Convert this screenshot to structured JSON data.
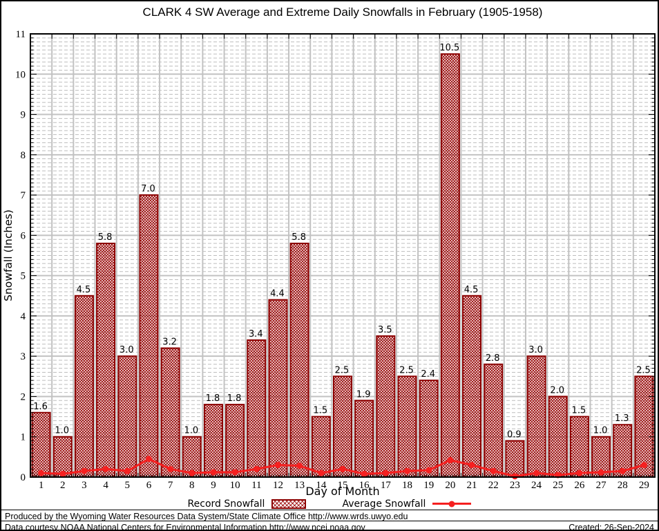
{
  "chart_data": {
    "type": "bar",
    "title": "CLARK 4 SW Average and Extreme Daily Snowfalls in February (1905-1958)",
    "xlabel": "Day of Month",
    "ylabel": "Snowfall (Inches)",
    "ylim": [
      0,
      11
    ],
    "y_major_step": 1,
    "y_minor_step": 0.1,
    "grid": {
      "major": "solid",
      "minor": "dashed"
    },
    "legend_position": "bottom",
    "bar_value_labels_shown": true,
    "categories": [
      1,
      2,
      3,
      4,
      5,
      6,
      7,
      8,
      9,
      10,
      11,
      12,
      13,
      14,
      15,
      16,
      17,
      18,
      19,
      20,
      21,
      22,
      23,
      24,
      25,
      26,
      27,
      28,
      29
    ],
    "series": [
      {
        "name": "Record Snowfall",
        "type": "bar",
        "values": [
          1.6,
          1.0,
          4.5,
          5.8,
          3.0,
          7.0,
          3.2,
          1.0,
          1.8,
          1.8,
          3.4,
          4.4,
          5.8,
          1.5,
          2.5,
          1.9,
          3.5,
          2.5,
          2.4,
          10.5,
          4.5,
          2.8,
          0.9,
          3.0,
          2.0,
          1.5,
          1.0,
          1.3,
          2.5
        ]
      },
      {
        "name": "Average Snowfall",
        "type": "line",
        "values": [
          0.1,
          0.08,
          0.15,
          0.2,
          0.15,
          0.45,
          0.2,
          0.1,
          0.12,
          0.12,
          0.2,
          0.3,
          0.28,
          0.1,
          0.2,
          0.08,
          0.1,
          0.15,
          0.17,
          0.42,
          0.3,
          0.15,
          0.02,
          0.1,
          0.05,
          0.1,
          0.12,
          0.15,
          0.3
        ]
      }
    ]
  },
  "colors": {
    "bar_border": "#8b0000",
    "bar_hatch": "#9e1010",
    "average_line": "#f52020",
    "grid_major": "#c2c2c2",
    "grid_minor": "#bdbdbd",
    "frame": "#000000"
  },
  "footer": {
    "line1": "Produced by the Wyoming Water Resources Data System/State Climate Office http://www.wrds.uwyo.edu",
    "line2": "Data courtesy NOAA National Centers for Environmental Information http://www.ncei.noaa.gov",
    "created": "Created: 26-Sep-2024"
  }
}
